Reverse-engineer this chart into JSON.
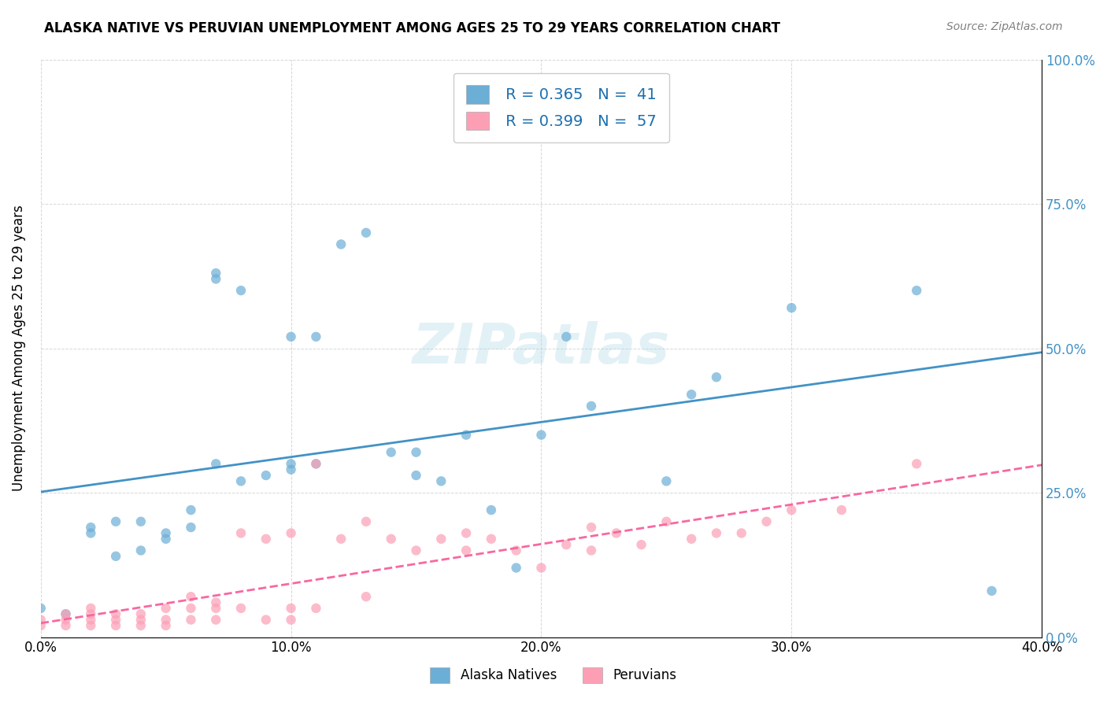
{
  "title": "ALASKA NATIVE VS PERUVIAN UNEMPLOYMENT AMONG AGES 25 TO 29 YEARS CORRELATION CHART",
  "source": "Source: ZipAtlas.com",
  "xlabel_bottom": "",
  "ylabel": "Unemployment Among Ages 25 to 29 years",
  "xmin": 0.0,
  "xmax": 0.4,
  "ymin": 0.0,
  "ymax": 1.0,
  "x_ticks": [
    0.0,
    0.1,
    0.2,
    0.3,
    0.4
  ],
  "x_tick_labels": [
    "0.0%",
    "10.0%",
    "20.0%",
    "30.0%",
    "40.0%"
  ],
  "y_ticks": [
    0.0,
    0.25,
    0.5,
    0.75,
    1.0
  ],
  "y_tick_labels": [
    "0.0%",
    "25.0%",
    "50.0%",
    "75.0%",
    "100.0%"
  ],
  "alaska_color": "#6baed6",
  "peruvian_color": "#fc9fb5",
  "alaska_R": 0.365,
  "alaska_N": 41,
  "peruvian_R": 0.399,
  "peruvian_N": 57,
  "alaska_line_color": "#4292c6",
  "peruvian_line_color": "#f768a1",
  "legend_R_color": "#1a6faf",
  "legend_N_color": "#1a6faf",
  "watermark": "ZIPatlas",
  "alaska_scatter_x": [
    0.0,
    0.01,
    0.02,
    0.02,
    0.03,
    0.03,
    0.04,
    0.04,
    0.05,
    0.05,
    0.06,
    0.06,
    0.07,
    0.07,
    0.07,
    0.08,
    0.08,
    0.09,
    0.1,
    0.1,
    0.1,
    0.11,
    0.11,
    0.12,
    0.13,
    0.14,
    0.15,
    0.15,
    0.16,
    0.17,
    0.18,
    0.19,
    0.2,
    0.21,
    0.22,
    0.25,
    0.26,
    0.27,
    0.3,
    0.35,
    0.38
  ],
  "alaska_scatter_y": [
    0.05,
    0.04,
    0.18,
    0.19,
    0.2,
    0.14,
    0.15,
    0.2,
    0.17,
    0.18,
    0.19,
    0.22,
    0.3,
    0.62,
    0.63,
    0.6,
    0.27,
    0.28,
    0.29,
    0.3,
    0.52,
    0.52,
    0.3,
    0.68,
    0.7,
    0.32,
    0.28,
    0.32,
    0.27,
    0.35,
    0.22,
    0.12,
    0.35,
    0.52,
    0.4,
    0.27,
    0.42,
    0.45,
    0.57,
    0.6,
    0.08
  ],
  "peruvian_scatter_x": [
    0.0,
    0.0,
    0.01,
    0.01,
    0.01,
    0.02,
    0.02,
    0.02,
    0.02,
    0.03,
    0.03,
    0.03,
    0.04,
    0.04,
    0.04,
    0.05,
    0.05,
    0.05,
    0.06,
    0.06,
    0.06,
    0.07,
    0.07,
    0.07,
    0.08,
    0.08,
    0.09,
    0.09,
    0.1,
    0.1,
    0.1,
    0.11,
    0.11,
    0.12,
    0.13,
    0.13,
    0.14,
    0.15,
    0.16,
    0.17,
    0.17,
    0.18,
    0.19,
    0.2,
    0.21,
    0.22,
    0.22,
    0.23,
    0.24,
    0.25,
    0.26,
    0.27,
    0.28,
    0.29,
    0.3,
    0.32,
    0.35
  ],
  "peruvian_scatter_y": [
    0.02,
    0.03,
    0.02,
    0.03,
    0.04,
    0.02,
    0.03,
    0.04,
    0.05,
    0.02,
    0.03,
    0.04,
    0.02,
    0.03,
    0.04,
    0.02,
    0.03,
    0.05,
    0.03,
    0.05,
    0.07,
    0.03,
    0.05,
    0.06,
    0.05,
    0.18,
    0.03,
    0.17,
    0.03,
    0.05,
    0.18,
    0.05,
    0.3,
    0.17,
    0.07,
    0.2,
    0.17,
    0.15,
    0.17,
    0.15,
    0.18,
    0.17,
    0.15,
    0.12,
    0.16,
    0.15,
    0.19,
    0.18,
    0.16,
    0.2,
    0.17,
    0.18,
    0.18,
    0.2,
    0.22,
    0.22,
    0.3
  ],
  "background_color": "#ffffff",
  "grid_color": "#cccccc"
}
